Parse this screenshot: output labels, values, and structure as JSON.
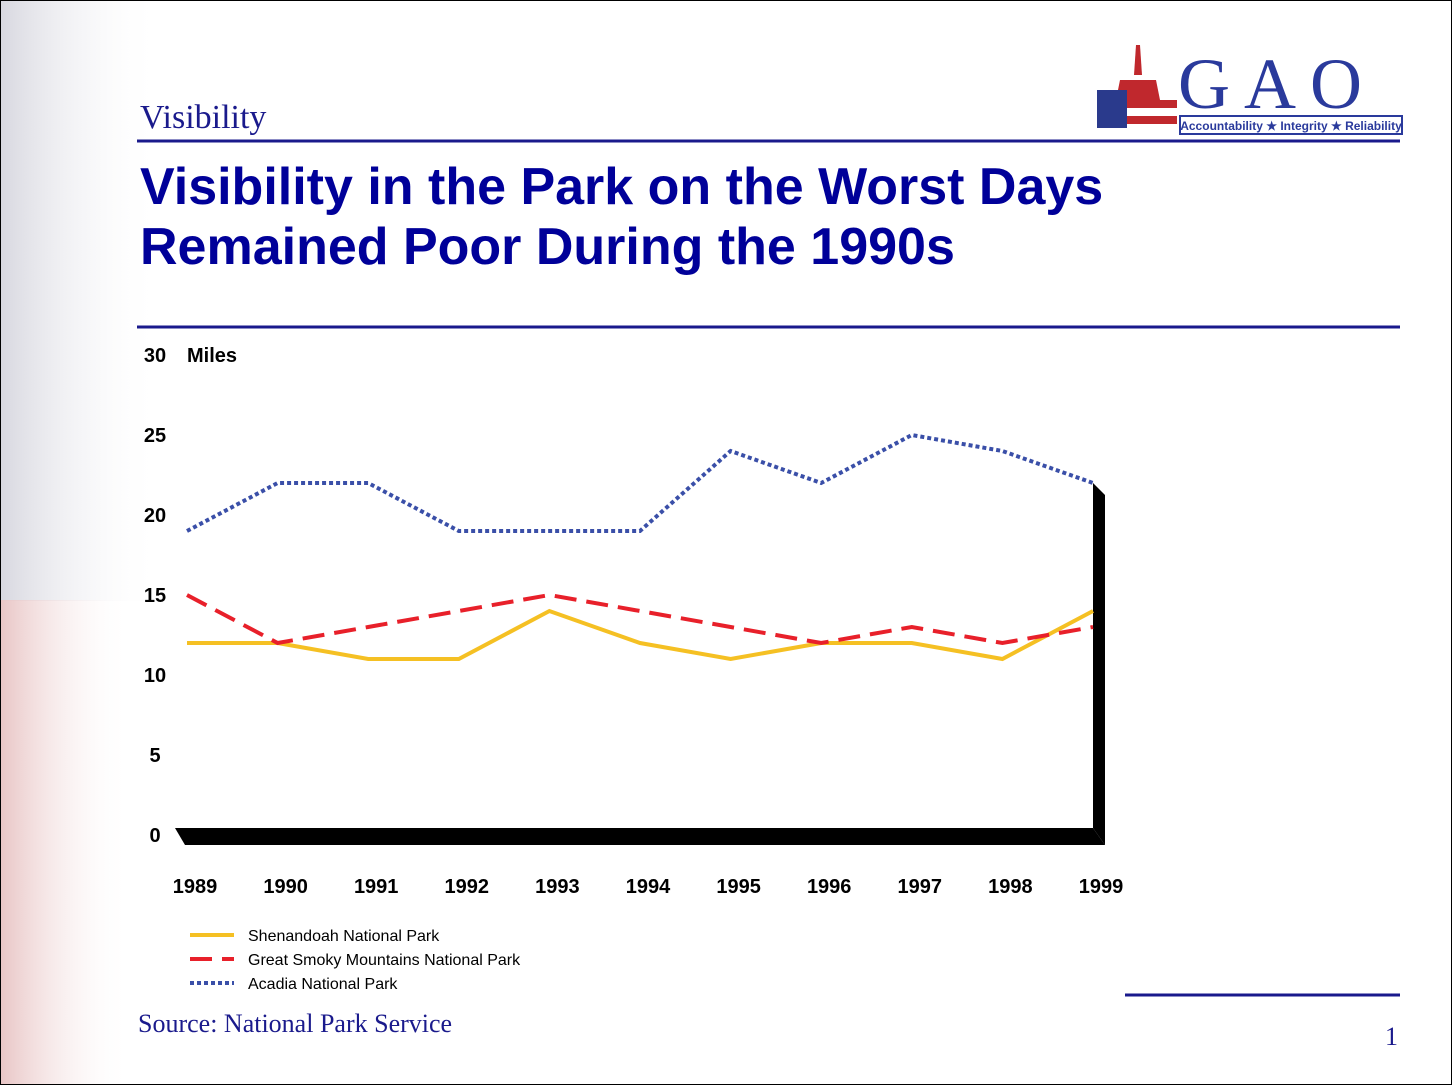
{
  "header": {
    "section": "Visibility",
    "logo": "G A O",
    "tagline": "Accountability ★ Integrity ★ Reliability"
  },
  "chart_data": {
    "type": "line",
    "title": "Visibility in the Park on the Worst Days Remained Poor During the 1990s",
    "y_label": "Miles",
    "categories": [
      "1989",
      "1990",
      "1991",
      "1992",
      "1993",
      "1994",
      "1995",
      "1996",
      "1997",
      "1998",
      "1999"
    ],
    "series": [
      {
        "name": "Shenandoah National Park",
        "color": "#f5c023",
        "style": "solid",
        "values": [
          12,
          12,
          11,
          11,
          14,
          12,
          11,
          12,
          12,
          11,
          14
        ]
      },
      {
        "name": "Great Smoky Mountains National Park",
        "color": "#e8202a",
        "style": "dashed",
        "values": [
          15,
          12,
          13,
          14,
          15,
          14,
          13,
          12,
          13,
          12,
          13
        ]
      },
      {
        "name": "Acadia National Park",
        "color": "#3a4fa8",
        "style": "dotted",
        "values": [
          19,
          22,
          22,
          19,
          19,
          19,
          24,
          22,
          25,
          24,
          22
        ]
      }
    ],
    "ylim": [
      0,
      30
    ],
    "yticks": [
      0,
      5,
      10,
      15,
      20,
      25,
      30
    ],
    "grid": false
  },
  "footer": {
    "source": "Source:  National Park Service",
    "page": "1"
  }
}
